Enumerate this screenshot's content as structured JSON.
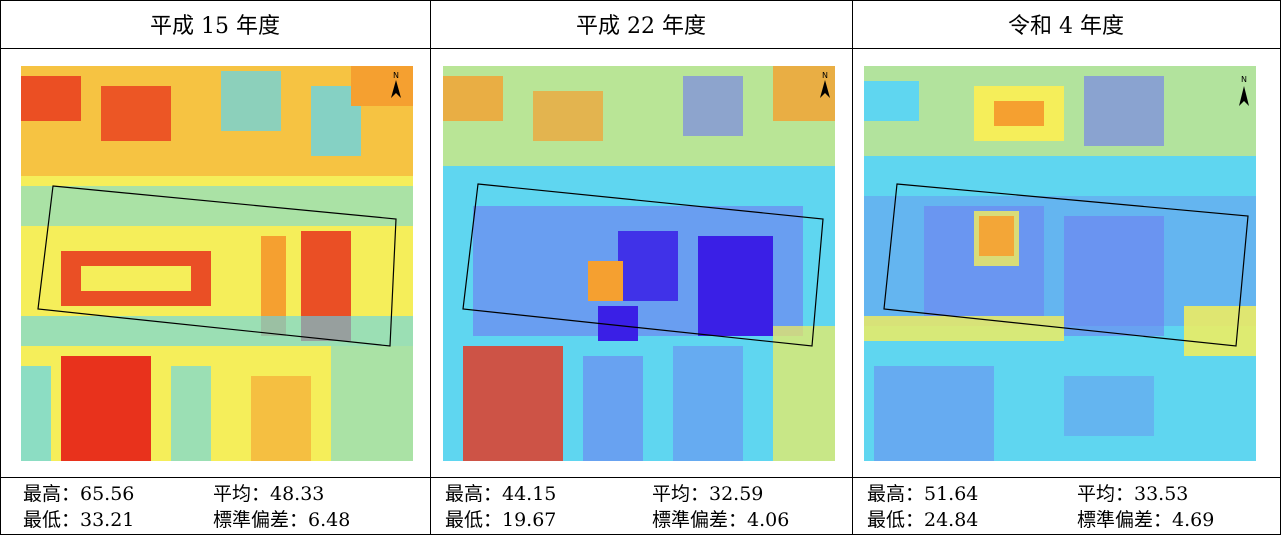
{
  "panels": [
    {
      "title": "平成 15 年度",
      "stats": {
        "max": "最高：65.56",
        "mean": "平均：48.33",
        "min": "最低：33.21",
        "std": "標準偏差：6.48"
      }
    },
    {
      "title": "平成 22 年度",
      "stats": {
        "max": "最高：44.15",
        "mean": "平均：32.59",
        "min": "最低：19.67",
        "std": "標準偏差：4.06"
      }
    },
    {
      "title": "令和 4 年度",
      "stats": {
        "max": "最高：51.64",
        "mean": "平均：33.53",
        "min": "最低：24.84",
        "std": "標準偏差：4.69"
      }
    }
  ],
  "north_arrow_label": "N",
  "colors": {
    "hot": "#e8321c",
    "warm": "#f5a030",
    "mild": "#f5ee5a",
    "cool": "#5fd6f0",
    "cold": "#6f78f2",
    "coldest": "#3a1fe6"
  }
}
